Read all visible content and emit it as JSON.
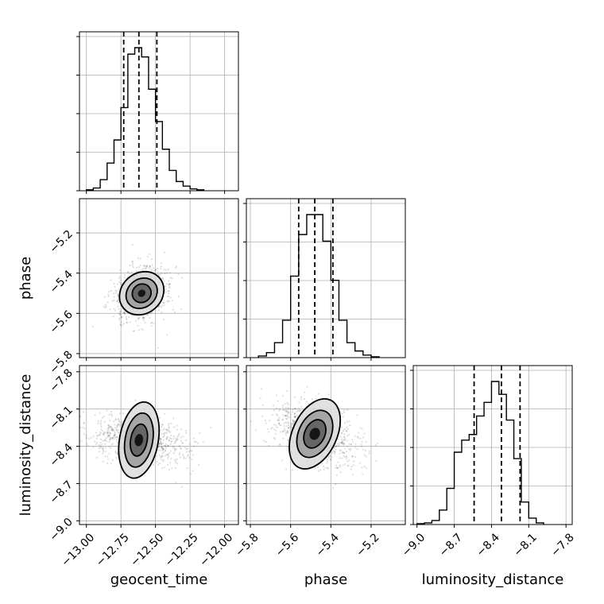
{
  "chart_data": {
    "type": "corner",
    "parameters": [
      "geocent_time",
      "phase",
      "luminosity_distance"
    ],
    "ranges": {
      "geocent_time": [
        -13.05,
        -11.9
      ],
      "phase": [
        -5.82,
        -5.03
      ],
      "luminosity_distance": [
        -9.03,
        -7.75
      ]
    },
    "ticks": {
      "geocent_time": {
        "values": [
          -13.0,
          -12.75,
          -12.5,
          -12.25,
          -12.0
        ],
        "labels": [
          "−13.00",
          "−12.75",
          "−12.50",
          "−12.25",
          "−12.00"
        ]
      },
      "phase": {
        "values": [
          -5.8,
          -5.6,
          -5.4,
          -5.2
        ],
        "labels": [
          "−5.8",
          "−5.6",
          "−5.4",
          "−5.2"
        ]
      },
      "luminosity_distance": {
        "values": [
          -9.0,
          -8.7,
          -8.4,
          -8.1,
          -7.8
        ],
        "labels": [
          "−9.0",
          "−8.7",
          "−8.4",
          "−8.1",
          "−7.8"
        ]
      }
    },
    "quantiles": {
      "geocent_time": [
        -12.73,
        -12.62,
        -12.49
      ],
      "phase": [
        -5.56,
        -5.48,
        -5.39
      ],
      "luminosity_distance": [
        -8.54,
        -8.32,
        -8.17
      ]
    },
    "histograms": {
      "geocent_time": {
        "edges": [
          -13.0,
          -12.95,
          -12.9,
          -12.85,
          -12.8,
          -12.75,
          -12.7,
          -12.65,
          -12.6,
          -12.55,
          -12.5,
          -12.45,
          -12.4,
          -12.35,
          -12.3,
          -12.25,
          -12.2,
          -12.15
        ],
        "counts": [
          1,
          3,
          12,
          30,
          55,
          90,
          148,
          155,
          145,
          110,
          75,
          45,
          22,
          10,
          5,
          2,
          1
        ]
      },
      "phase": {
        "edges": [
          -5.76,
          -5.72,
          -5.68,
          -5.64,
          -5.6,
          -5.56,
          -5.52,
          -5.48,
          -5.44,
          -5.4,
          -5.36,
          -5.32,
          -5.28,
          -5.24,
          -5.2,
          -5.16
        ],
        "counts": [
          2,
          6,
          18,
          45,
          98,
          148,
          172,
          172,
          140,
          93,
          45,
          18,
          8,
          3,
          1
        ]
      },
      "luminosity_distance": {
        "edges": [
          -9.0,
          -8.94,
          -8.88,
          -8.82,
          -8.76,
          -8.7,
          -8.64,
          -8.58,
          -8.52,
          -8.46,
          -8.4,
          -8.34,
          -8.28,
          -8.22,
          -8.16,
          -8.1,
          -8.04,
          -7.98
        ],
        "counts": [
          1,
          2,
          5,
          18,
          45,
          90,
          105,
          112,
          135,
          152,
          178,
          162,
          130,
          82,
          28,
          8,
          2
        ]
      }
    },
    "scatter_2d": [
      {
        "x": "geocent_time",
        "y": "phase",
        "center": [
          -12.6,
          -5.5
        ],
        "contour_levels": [
          {
            "sx": 0.025,
            "sy": 0.02,
            "angle_deg": 40
          },
          {
            "sx": 0.07,
            "sy": 0.045,
            "angle_deg": 40
          },
          {
            "sx": 0.12,
            "sy": 0.07,
            "angle_deg": 40
          },
          {
            "sx": 0.17,
            "sy": 0.1,
            "angle_deg": 40
          }
        ]
      },
      {
        "x": "geocent_time",
        "y": "luminosity_distance",
        "center": [
          -12.62,
          -8.35
        ],
        "contour_levels": [
          {
            "sx": 0.03,
            "sy": 0.05,
            "angle_deg": 80
          },
          {
            "sx": 0.06,
            "sy": 0.13,
            "angle_deg": 80
          },
          {
            "sx": 0.1,
            "sy": 0.22,
            "angle_deg": 80
          },
          {
            "sx": 0.14,
            "sy": 0.31,
            "angle_deg": 80
          }
        ]
      },
      {
        "x": "phase",
        "y": "luminosity_distance",
        "center": [
          -5.48,
          -8.3
        ],
        "contour_levels": [
          {
            "sx": 0.025,
            "sy": 0.05,
            "angle_deg": 65
          },
          {
            "sx": 0.05,
            "sy": 0.12,
            "angle_deg": 65
          },
          {
            "sx": 0.08,
            "sy": 0.2,
            "angle_deg": 65
          },
          {
            "sx": 0.11,
            "sy": 0.3,
            "angle_deg": 65
          }
        ]
      }
    ],
    "xlabels": [
      "geocent_time",
      "phase",
      "luminosity_distance"
    ],
    "ylabels": [
      "phase",
      "luminosity_distance"
    ],
    "grid": true,
    "quantile_style": "dashed"
  }
}
